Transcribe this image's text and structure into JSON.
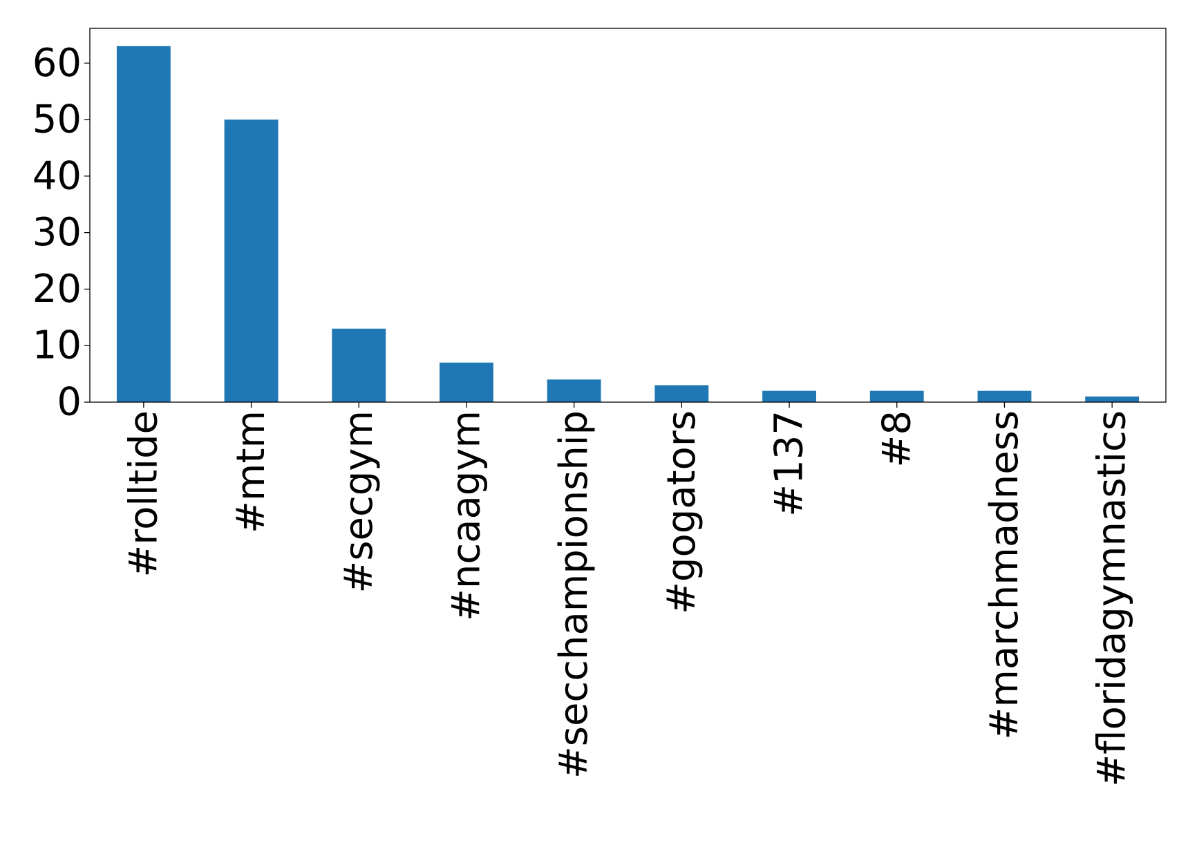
{
  "chart_data": {
    "type": "bar",
    "title": "",
    "xlabel": "",
    "ylabel": "",
    "categories": [
      "#rolltide",
      "#mtm",
      "#secgym",
      "#ncaagym",
      "#secchampionship",
      "#gogators",
      "#137",
      "#8",
      "#marchmadness",
      "#floridagymnastics"
    ],
    "values": [
      63,
      50,
      13,
      7,
      4,
      3,
      2,
      2,
      2,
      1
    ],
    "ylim": [
      0,
      66.15
    ],
    "yticks": [
      0,
      10,
      20,
      30,
      40,
      50,
      60
    ],
    "ytick_labels": [
      "0",
      "10",
      "20",
      "30",
      "40",
      "50",
      "60"
    ],
    "grid": false,
    "legend": "none",
    "bar_color": "#1f77b4"
  }
}
